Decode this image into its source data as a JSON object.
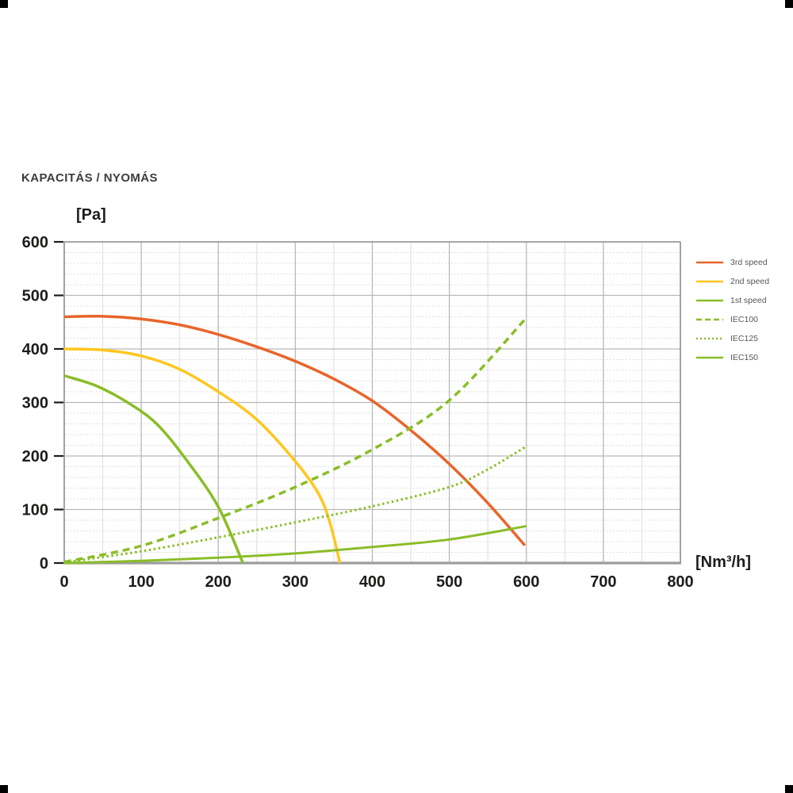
{
  "title": "KAPACITÁS / NYOMÁS",
  "colors": {
    "title_text": "#3c3c3b",
    "tick_label": "#1d1d1b",
    "legend_text": "#575756",
    "grid_major": "#b9b9b9",
    "grid_minor": "#dedede",
    "grid_minor_dotted": "#d6d6d6",
    "plot_border": "#8a8a89",
    "x_axis": "#9d9d9c",
    "orange": "#e8652b",
    "yellow": "#ffc61e",
    "green": "#8abd28"
  },
  "chart_data": {
    "type": "line",
    "title": "KAPACITÁS / NYOMÁS",
    "x_unit": "[Nm³/h]",
    "y_unit": "[Pa]",
    "xlim": [
      0,
      800
    ],
    "ylim": [
      0,
      600
    ],
    "x_ticks": [
      0,
      100,
      200,
      300,
      400,
      500,
      600,
      700,
      800
    ],
    "y_ticks": [
      0,
      100,
      200,
      300,
      400,
      500,
      600
    ],
    "x_minor_step": 50,
    "y_minor_step": 20,
    "grid": "on",
    "legend_position": "right",
    "series": [
      {
        "name": "3rd speed",
        "color": "#e8652b",
        "style": "solid",
        "width": 3.5,
        "points": [
          [
            0,
            460
          ],
          [
            50,
            461
          ],
          [
            100,
            456
          ],
          [
            150,
            445
          ],
          [
            200,
            427
          ],
          [
            250,
            404
          ],
          [
            300,
            377
          ],
          [
            350,
            344
          ],
          [
            400,
            303
          ],
          [
            450,
            248
          ],
          [
            500,
            185
          ],
          [
            550,
            112
          ],
          [
            598,
            33
          ]
        ]
      },
      {
        "name": "2nd speed",
        "color": "#ffc61e",
        "style": "solid",
        "width": 3.5,
        "points": [
          [
            0,
            400
          ],
          [
            50,
            398
          ],
          [
            100,
            387
          ],
          [
            150,
            362
          ],
          [
            200,
            320
          ],
          [
            250,
            268
          ],
          [
            300,
            190
          ],
          [
            330,
            130
          ],
          [
            345,
            75
          ],
          [
            358,
            0
          ]
        ]
      },
      {
        "name": "1st speed",
        "color": "#8abd28",
        "style": "solid",
        "width": 3.5,
        "points": [
          [
            0,
            350
          ],
          [
            40,
            332
          ],
          [
            80,
            302
          ],
          [
            120,
            260
          ],
          [
            160,
            190
          ],
          [
            200,
            105
          ],
          [
            232,
            0
          ]
        ]
      },
      {
        "name": "IEC100",
        "color": "#8abd28",
        "style": "dashed",
        "width": 3.5,
        "points": [
          [
            0,
            2
          ],
          [
            100,
            32
          ],
          [
            200,
            84
          ],
          [
            300,
            142
          ],
          [
            400,
            212
          ],
          [
            500,
            304
          ],
          [
            600,
            458
          ]
        ]
      },
      {
        "name": "IEC125",
        "color": "#8abd28",
        "style": "dotted",
        "width": 3,
        "points": [
          [
            0,
            1
          ],
          [
            100,
            22
          ],
          [
            200,
            48
          ],
          [
            300,
            76
          ],
          [
            400,
            106
          ],
          [
            500,
            142
          ],
          [
            550,
            175
          ],
          [
            600,
            218
          ]
        ]
      },
      {
        "name": "IEC150",
        "color": "#8abd28",
        "style": "solid",
        "width": 3,
        "points": [
          [
            0,
            0
          ],
          [
            100,
            4
          ],
          [
            200,
            10
          ],
          [
            300,
            18
          ],
          [
            400,
            30
          ],
          [
            500,
            44
          ],
          [
            600,
            69
          ]
        ]
      }
    ]
  }
}
